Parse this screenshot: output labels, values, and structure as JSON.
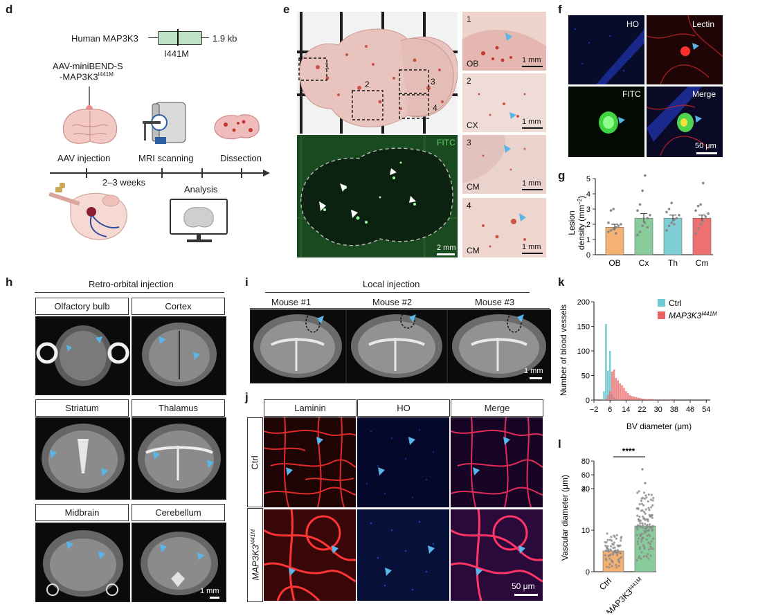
{
  "panels": {
    "d": {
      "label": "d",
      "gene_name": "Human MAP3K3",
      "gene_size": "1.9 kb",
      "mutation": "I441M",
      "vector_line1": "AAV-miniBEND-S",
      "vector_line2": "-MAP3K3",
      "vector_sup": "I441M",
      "steps": [
        "AAV injection",
        "MRI scanning",
        "Dissection"
      ],
      "duration": "2–3 weeks",
      "analysis": "Analysis"
    },
    "e": {
      "label": "e",
      "region_numbers": [
        "1",
        "2",
        "3",
        "4"
      ],
      "insets": [
        {
          "num": "1",
          "region": "OB",
          "scale": "1 mm"
        },
        {
          "num": "2",
          "region": "CX",
          "scale": "1 mm"
        },
        {
          "num": "3",
          "region": "CM",
          "scale": "1 mm"
        },
        {
          "num": "4",
          "region": "CM",
          "scale": "1 mm"
        }
      ],
      "fitc_label": "FITC",
      "fitc_scale": "2 mm"
    },
    "f": {
      "label": "f",
      "channels": [
        "HO",
        "Lectin",
        "FITC",
        "Merge"
      ],
      "scale": "50 μm"
    },
    "h": {
      "label": "h",
      "title": "Retro-orbital injection",
      "regions": [
        "Olfactory bulb",
        "Cortex",
        "Striatum",
        "Thalamus",
        "Midbrain",
        "Cerebellum"
      ],
      "scale": "1 mm"
    },
    "i": {
      "label": "i",
      "title": "Local injection",
      "mice": [
        "Mouse #1",
        "Mouse #2",
        "Mouse #3"
      ],
      "scale": "1 mm"
    },
    "j": {
      "label": "j",
      "channels": [
        "Laminin",
        "HO",
        "Merge"
      ],
      "rows": [
        "Ctrl",
        "MAP3K3"
      ],
      "row_sup": "I441M",
      "scale": "50 μm"
    }
  },
  "chart_data": [
    {
      "panel": "g",
      "type": "bar",
      "categories": [
        "OB",
        "Cx",
        "Th",
        "Cm"
      ],
      "values": [
        1.8,
        2.4,
        2.4,
        2.4
      ],
      "errors": [
        0.2,
        0.3,
        0.2,
        0.2
      ],
      "points": [
        [
          1.5,
          1.6,
          1.7,
          1.8,
          1.9,
          2.0,
          2.1,
          2.9,
          3.0,
          1.4
        ],
        [
          1.3,
          1.5,
          1.9,
          2.1,
          2.4,
          2.6,
          2.9,
          3.3,
          4.2,
          5.2,
          1.8
        ],
        [
          1.6,
          1.9,
          2.1,
          2.3,
          2.4,
          2.6,
          2.8,
          3.0,
          3.4,
          2.0
        ],
        [
          1.4,
          1.7,
          2.0,
          2.2,
          2.5,
          2.7,
          2.9,
          3.2,
          3.3,
          4.7
        ]
      ],
      "colors": [
        "#f5b171",
        "#88cc9c",
        "#7fcfd6",
        "#ee7070"
      ],
      "ylabel_line1": "Lesion",
      "ylabel_line2": "density (mm",
      "ylabel_sup": "−2",
      "ylabel_end": ")",
      "ylim": [
        0,
        5
      ],
      "yticks": [
        "0",
        "1",
        "2",
        "3",
        "4",
        "5"
      ]
    },
    {
      "panel": "k",
      "type": "bar",
      "xlabel": "BV diameter (μm)",
      "ylabel": "Number of blood vessels",
      "xticks": [
        "−2",
        "6",
        "14",
        "22",
        "30",
        "38",
        "46",
        "54"
      ],
      "yticks": [
        "0",
        "50",
        "100",
        "150",
        "200"
      ],
      "xlim": [
        -2,
        56
      ],
      "ylim": [
        0,
        200
      ],
      "series": [
        {
          "name": "Ctrl",
          "color": "#6ccad3",
          "x": [
            3,
            4,
            5,
            6,
            7,
            8,
            9,
            10,
            11
          ],
          "values": [
            18,
            155,
            60,
            100,
            12,
            5,
            3,
            2,
            1
          ]
        },
        {
          "name": "MAP3K3",
          "name_sup": "I441M",
          "color": "#ea6464",
          "x": [
            4,
            5,
            6,
            7,
            8,
            9,
            10,
            11,
            12,
            13,
            14,
            15,
            16,
            17,
            18,
            19,
            20,
            21,
            22,
            23,
            24,
            25,
            26,
            27,
            28,
            30,
            32,
            34,
            36
          ],
          "values": [
            3,
            10,
            18,
            58,
            62,
            45,
            40,
            34,
            30,
            25,
            18,
            14,
            10,
            8,
            7,
            6,
            5,
            4,
            3,
            3,
            2,
            2,
            2,
            2,
            1,
            1,
            1,
            1,
            1
          ]
        }
      ]
    },
    {
      "panel": "l",
      "type": "bar",
      "categories": [
        "Ctrl",
        "MAP3K3"
      ],
      "category_sup": [
        "",
        "I441M"
      ],
      "values": [
        5,
        11
      ],
      "colors": [
        "#f5b171",
        "#88cc9c"
      ],
      "ylabel": "Vascular diameter (μm)",
      "yticks_lower": [
        "0",
        "10",
        "20"
      ],
      "yticks_upper": [
        "40",
        "60",
        "80"
      ],
      "significance": "****"
    }
  ]
}
